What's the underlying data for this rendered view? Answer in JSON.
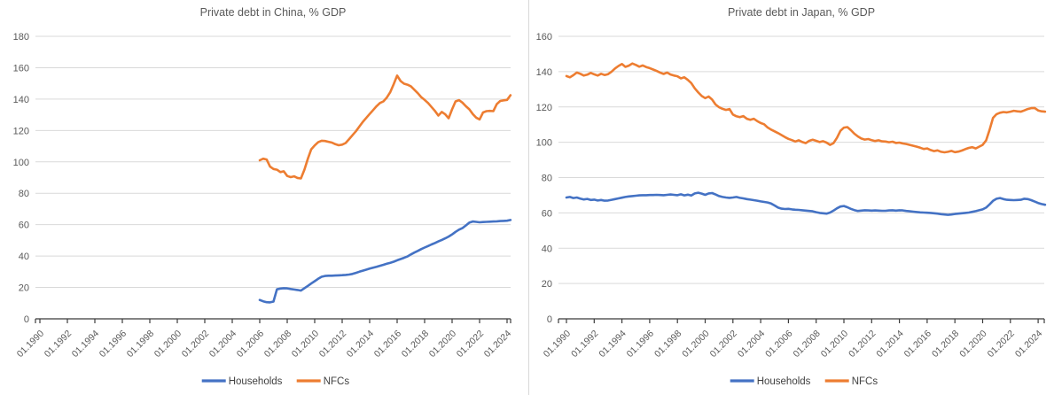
{
  "chart_data": [
    {
      "id": "china",
      "type": "line",
      "title": "Private debt in China, % GDP",
      "xlabel": "",
      "ylabel": "",
      "ylim": [
        0,
        180
      ],
      "y_tick_step": 20,
      "grid": true,
      "legend_position": "bottom",
      "x_tick_labels": [
        "01.1990",
        "01.1992",
        "01.1994",
        "01.1996",
        "01.1998",
        "01.2000",
        "01.2002",
        "01.2004",
        "01.2006",
        "01.2008",
        "01.2010",
        "01.2012",
        "01.2014",
        "01.2016",
        "01.2018",
        "01.2020",
        "01.2022",
        "01.2024"
      ],
      "x_tick_years": [
        1990,
        1992,
        1994,
        1996,
        1998,
        2000,
        2002,
        2004,
        2006,
        2008,
        2010,
        2012,
        2014,
        2016,
        2018,
        2020,
        2022,
        2024
      ],
      "series": [
        {
          "name": "Households",
          "color": "#4472C4",
          "start": 2006.0,
          "step": 0.25,
          "values": [
            12,
            11.2,
            10.6,
            10.5,
            11,
            18.8,
            19.3,
            19.5,
            19.4,
            19,
            18.7,
            18.4,
            18,
            19.5,
            21,
            22.5,
            24,
            25.5,
            26.8,
            27.3,
            27.5,
            27.5,
            27.6,
            27.7,
            27.8,
            28,
            28.2,
            28.6,
            29.3,
            30,
            30.7,
            31.3,
            32,
            32.6,
            33.2,
            33.8,
            34.4,
            35.1,
            35.7,
            36.4,
            37.3,
            38.1,
            38.9,
            39.7,
            41,
            42.2,
            43.3,
            44.4,
            45.4,
            46.4,
            47.4,
            48.3,
            49.3,
            50.3,
            51.3,
            52.4,
            53.8,
            55.4,
            56.8,
            57.8,
            59.5,
            61.3,
            62,
            61.8,
            61.5,
            61.7,
            61.8,
            61.9,
            62,
            62.1,
            62.3,
            62.4,
            62.5,
            63
          ]
        },
        {
          "name": "NFCs",
          "color": "#ED7D31",
          "start": 2006.0,
          "step": 0.25,
          "values": [
            101,
            102,
            101.5,
            97,
            95.5,
            95,
            93.5,
            94,
            91,
            90.3,
            90.8,
            89.8,
            89.5,
            95,
            102,
            108,
            110.5,
            112.5,
            113.5,
            113.3,
            112.8,
            112.3,
            111.3,
            110.6,
            111,
            112,
            114.5,
            117,
            119.5,
            122.5,
            125.5,
            128,
            130.5,
            133,
            135.5,
            137.5,
            138.5,
            141,
            144.5,
            149.5,
            155,
            151.5,
            149.8,
            149.2,
            148.2,
            146,
            143.8,
            141.3,
            139.5,
            137.5,
            135,
            132.5,
            129.5,
            131.8,
            130.3,
            127.8,
            133.5,
            138.5,
            139.3,
            137.8,
            135.5,
            133.5,
            130.5,
            128.2,
            127,
            131.5,
            132.3,
            132.5,
            132.3,
            136.8,
            138.8,
            139.2,
            139.5,
            142.5
          ]
        }
      ]
    },
    {
      "id": "japan",
      "type": "line",
      "title": "Private debt in Japan, % GDP",
      "xlabel": "",
      "ylabel": "",
      "ylim": [
        0,
        160
      ],
      "y_tick_step": 20,
      "grid": true,
      "legend_position": "bottom",
      "x_tick_labels": [
        "01.1990",
        "01.1992",
        "01.1994",
        "01.1996",
        "01.1998",
        "01.2000",
        "01.2002",
        "01.2004",
        "01.2006",
        "01.2008",
        "01.2010",
        "01.2012",
        "01.2014",
        "01.2016",
        "01.2018",
        "01.2020",
        "01.2022",
        "01.2024"
      ],
      "x_tick_years": [
        1990,
        1992,
        1994,
        1996,
        1998,
        2000,
        2002,
        2004,
        2006,
        2008,
        2010,
        2012,
        2014,
        2016,
        2018,
        2020,
        2022,
        2024
      ],
      "series": [
        {
          "name": "Households",
          "color": "#4472C4",
          "start": 1990.0,
          "step": 0.25,
          "values": [
            68.7,
            69,
            68.4,
            68.7,
            68.1,
            67.6,
            67.9,
            67.3,
            67.5,
            67,
            67.3,
            66.9,
            67,
            67.4,
            67.8,
            68.2,
            68.6,
            69,
            69.3,
            69.5,
            69.7,
            69.9,
            70,
            70,
            70.1,
            70.1,
            70.2,
            70.1,
            70,
            70.2,
            70.4,
            70.2,
            70,
            70.5,
            69.9,
            70.3,
            69.8,
            71,
            71.4,
            70.9,
            70.2,
            71,
            71.2,
            70.4,
            69.5,
            69,
            68.7,
            68.5,
            68.7,
            69,
            68.5,
            68.2,
            67.8,
            67.5,
            67.2,
            66.9,
            66.5,
            66.2,
            65.9,
            65.3,
            64.2,
            63,
            62.4,
            62.2,
            62.3,
            62,
            61.8,
            61.7,
            61.5,
            61.3,
            61.1,
            60.9,
            60.4,
            60,
            59.8,
            59.6,
            60.2,
            61.3,
            62.6,
            63.6,
            63.9,
            63.2,
            62.3,
            61.6,
            61.1,
            61.3,
            61.5,
            61.4,
            61.3,
            61.4,
            61.3,
            61.2,
            61.2,
            61.4,
            61.5,
            61.3,
            61.5,
            61.4,
            61.1,
            60.9,
            60.7,
            60.5,
            60.3,
            60.2,
            60.1,
            60,
            59.8,
            59.6,
            59.3,
            59.1,
            58.9,
            59.1,
            59.4,
            59.6,
            59.8,
            60,
            60.2,
            60.6,
            61,
            61.5,
            62,
            63,
            64.8,
            66.8,
            68,
            68.4,
            67.8,
            67.4,
            67.3,
            67.2,
            67.3,
            67.4,
            68,
            67.8,
            67.2,
            66.4,
            65.6,
            65,
            64.6
          ]
        },
        {
          "name": "NFCs",
          "color": "#ED7D31",
          "start": 1990.0,
          "step": 0.25,
          "values": [
            137.5,
            136.8,
            138,
            139.5,
            138.8,
            137.8,
            138.3,
            139.3,
            138.5,
            137.8,
            138.8,
            138.1,
            138.6,
            140,
            141.8,
            143.2,
            144.3,
            142.7,
            143.4,
            144.6,
            143.8,
            142.8,
            143.5,
            142.6,
            142,
            141.2,
            140.4,
            139.5,
            138.7,
            139.5,
            138.4,
            137.8,
            137.4,
            136.2,
            136.8,
            135.3,
            133.5,
            130.5,
            128.2,
            126.2,
            125,
            125.9,
            124.2,
            121.4,
            119.8,
            118.9,
            118.3,
            118.8,
            115.7,
            114.7,
            114.2,
            114.8,
            113.3,
            112.7,
            113.3,
            112,
            110.9,
            110.2,
            108.4,
            107.2,
            106.2,
            105.2,
            104.1,
            102.9,
            101.9,
            101.2,
            100.4,
            101.1,
            100.1,
            99.5,
            100.8,
            101.4,
            100.8,
            100.1,
            100.6,
            99.8,
            98.5,
            99.5,
            102.5,
            106.5,
            108.3,
            108.6,
            106.9,
            104.9,
            103.3,
            102.1,
            101.5,
            101.8,
            101.2,
            100.7,
            101.1,
            100.5,
            100.4,
            100,
            100.3,
            99.6,
            99.8,
            99.3,
            99,
            98.5,
            98,
            97.5,
            96.9,
            96.2,
            96.5,
            95.6,
            95,
            95.4,
            94.6,
            94.3,
            94.6,
            95.1,
            94.4,
            94.7,
            95.3,
            96.1,
            96.8,
            97.2,
            96.5,
            97.5,
            98.5,
            101,
            107,
            113.8,
            115.9,
            116.7,
            117.1,
            116.9,
            117.3,
            117.8,
            117.5,
            117.3,
            118,
            118.8,
            119.3,
            119.4,
            118,
            117.5,
            117.3
          ]
        }
      ]
    }
  ]
}
